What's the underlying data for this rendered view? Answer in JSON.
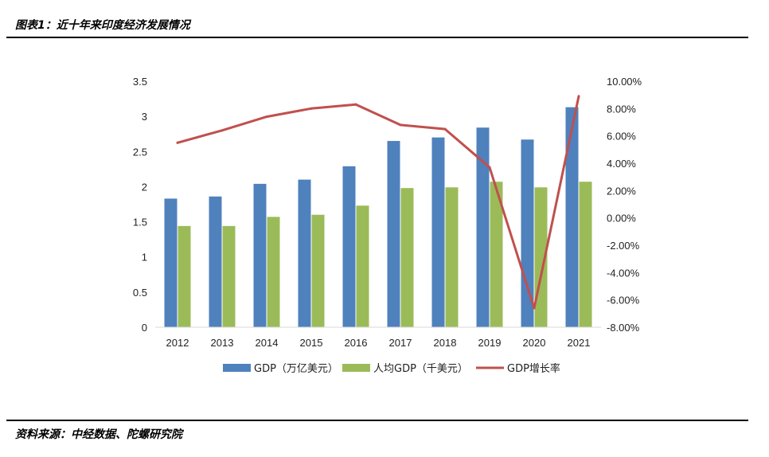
{
  "header": {
    "title": "图表1：近十年来印度经济发展情况"
  },
  "footer": {
    "source": "资料来源：中经数据、陀螺研究院"
  },
  "chart_data": {
    "type": "bar",
    "categories": [
      "2012",
      "2013",
      "2014",
      "2015",
      "2016",
      "2017",
      "2018",
      "2019",
      "2020",
      "2021"
    ],
    "series": [
      {
        "name": "GDP（万亿美元）",
        "type": "bar",
        "axis": "left",
        "color": "#4F81BD",
        "values": [
          1.83,
          1.86,
          2.04,
          2.1,
          2.29,
          2.65,
          2.7,
          2.84,
          2.67,
          3.13
        ]
      },
      {
        "name": "人均GDP（千美元）",
        "type": "bar",
        "axis": "left",
        "color": "#9BBB59",
        "values": [
          1.44,
          1.44,
          1.57,
          1.6,
          1.73,
          1.98,
          1.99,
          2.07,
          1.99,
          2.07
        ]
      },
      {
        "name": "GDP增长率",
        "type": "line",
        "axis": "right",
        "color": "#C0504D",
        "values": [
          5.5,
          6.4,
          7.4,
          8.0,
          8.3,
          6.8,
          6.5,
          3.7,
          -6.6,
          8.9
        ]
      }
    ],
    "left_axis": {
      "ylim": [
        0,
        3.5
      ],
      "ticks": [
        "0",
        "0.5",
        "1",
        "1.5",
        "2",
        "2.5",
        "3",
        "3.5"
      ]
    },
    "right_axis": {
      "ylim": [
        -8,
        10
      ],
      "ticks": [
        "-8.00%",
        "-6.00%",
        "-4.00%",
        "-2.00%",
        "0.00%",
        "2.00%",
        "4.00%",
        "6.00%",
        "8.00%",
        "10.00%"
      ]
    },
    "legend_position": "bottom",
    "grid": false
  }
}
